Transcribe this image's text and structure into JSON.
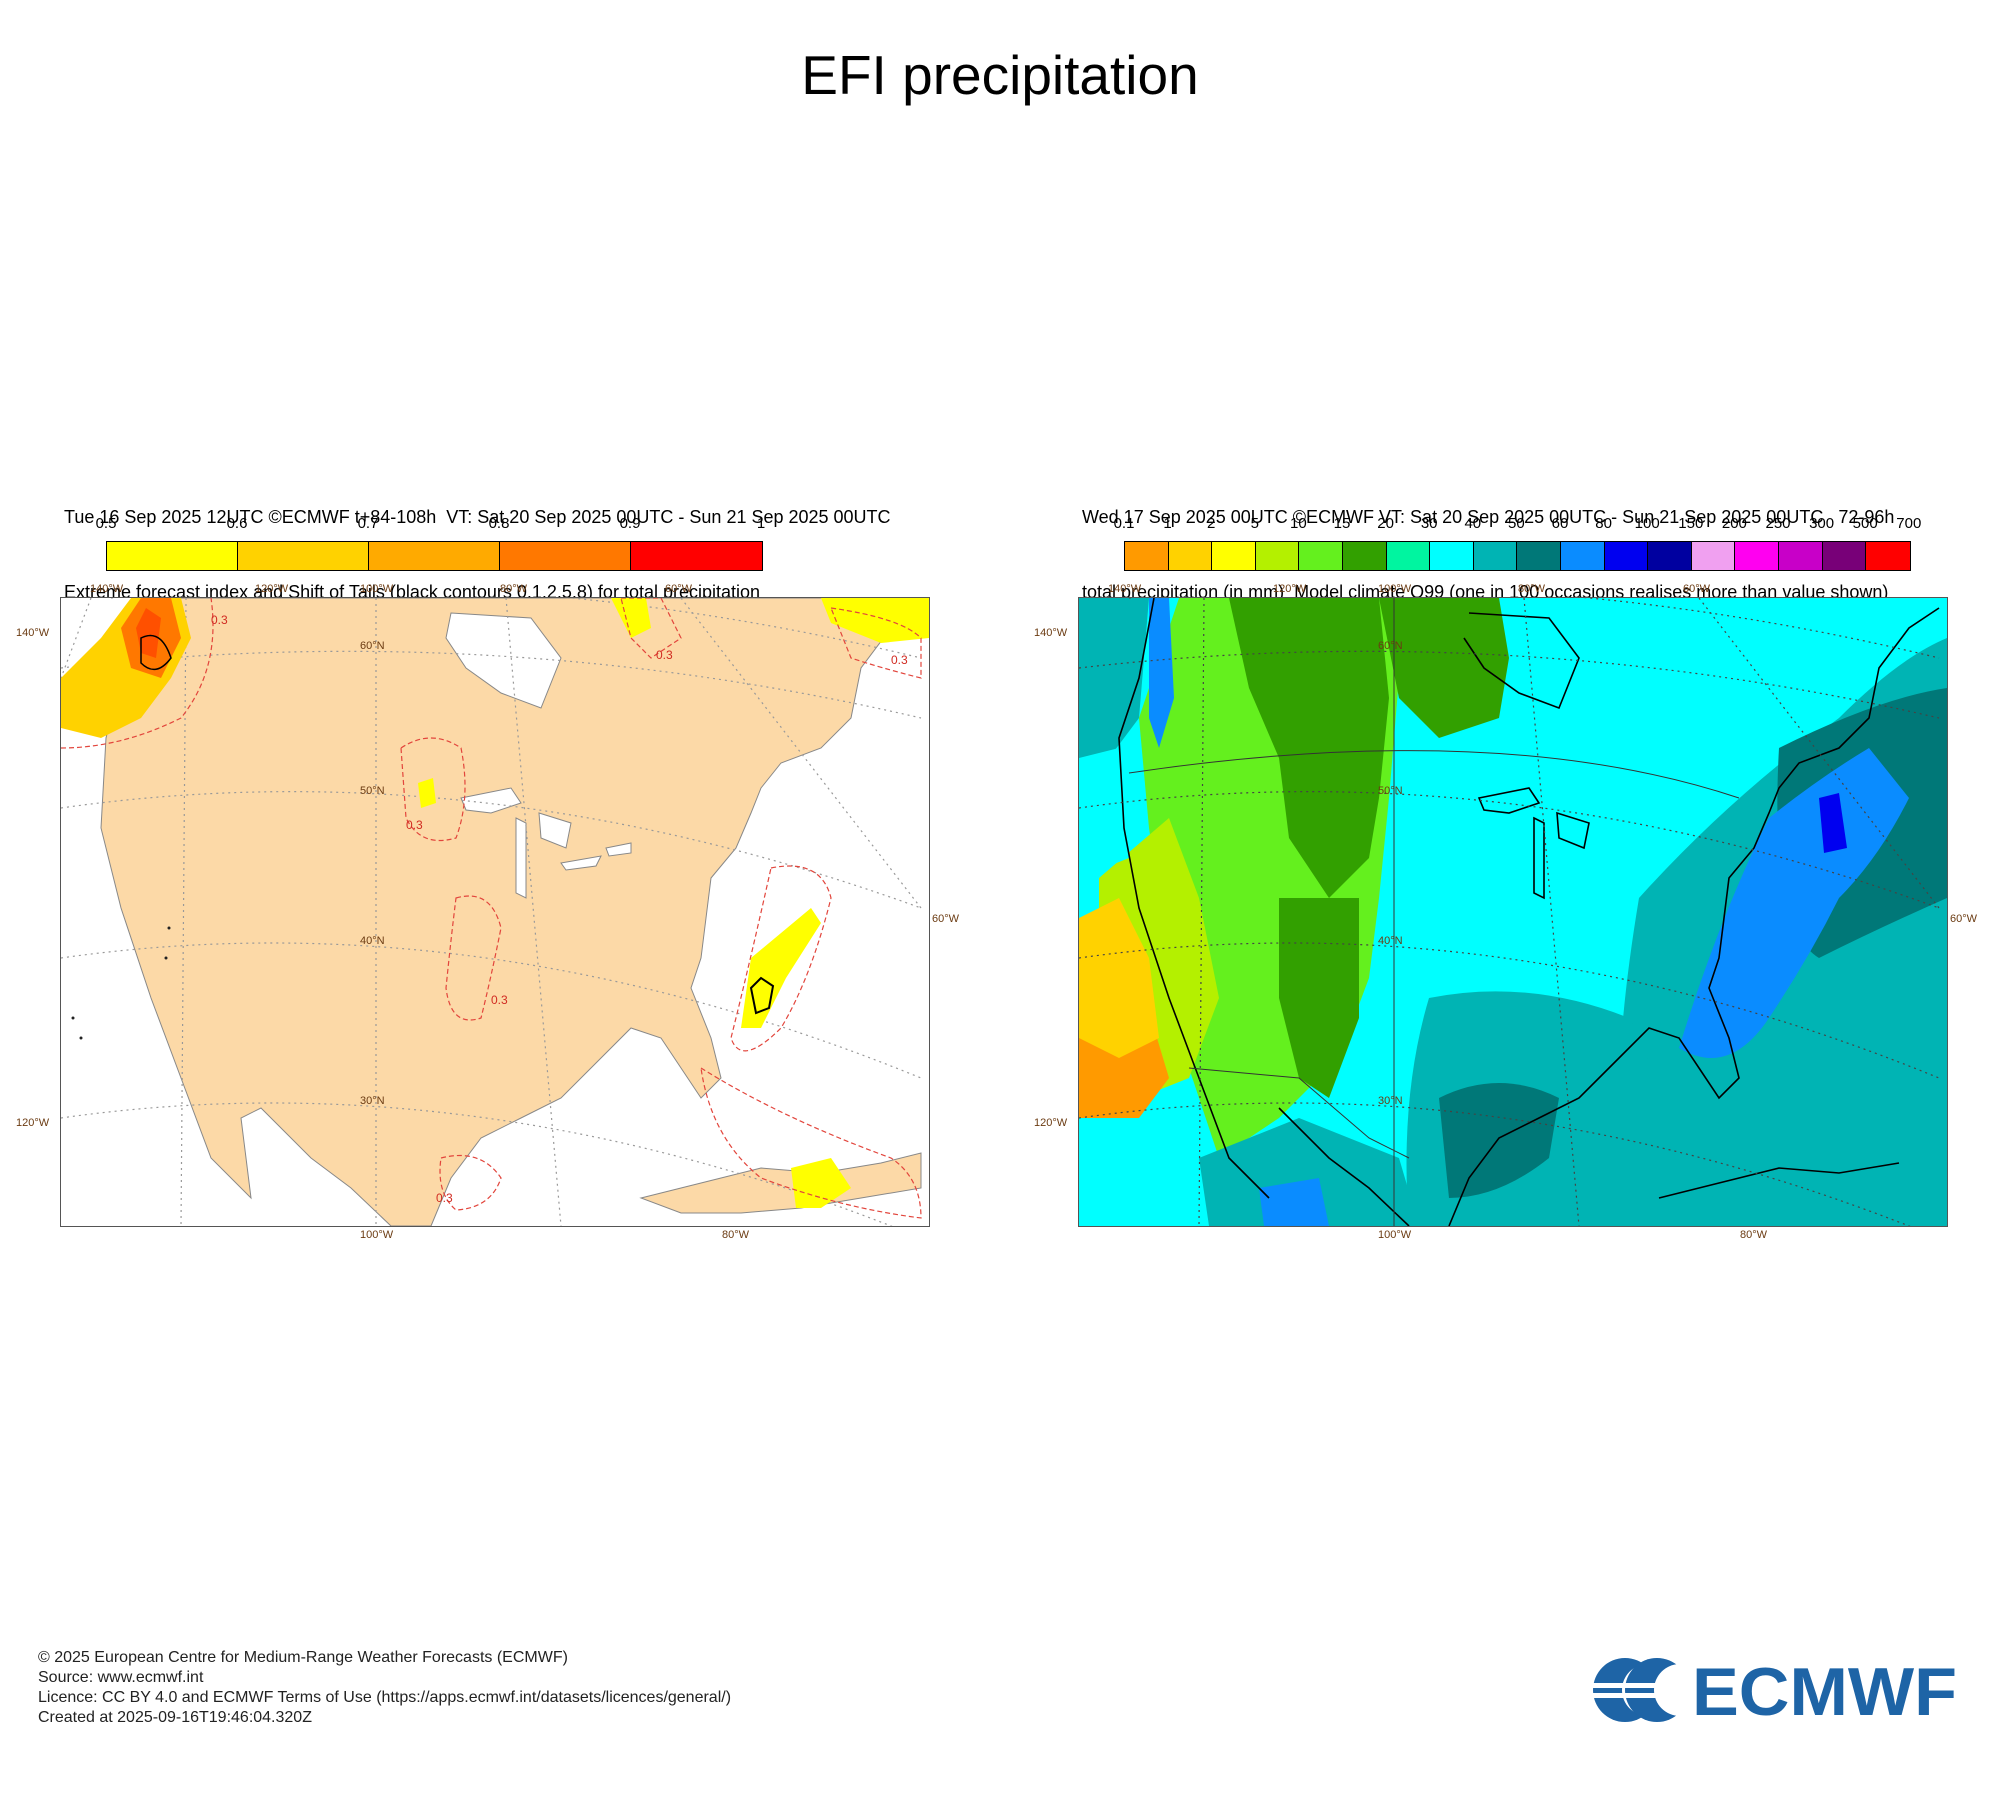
{
  "page": {
    "title": "EFI precipitation"
  },
  "colors": {
    "efi_base": "#fcd9a7",
    "ecmwf_blue": "#1e64a6",
    "contour_red": "#e2453c"
  },
  "panels": [
    {
      "id": "efi",
      "header_line1": "Tue 16 Sep 2025 12UTC ©ECMWF t+84-108h  VT: Sat 20 Sep 2025 00UTC - Sun 21 Sep 2025 00UTC",
      "header_line2": "Extreme forecast index and Shift of Tails (black contours 0,1,2,5,8) for total precipitation",
      "colorbar": {
        "ticks": [
          "0.5",
          "0.6",
          "0.7",
          "0.8",
          "0.9",
          "1"
        ],
        "colors": [
          "#ffff00",
          "#ffd200",
          "#ffaa00",
          "#ff7800",
          "#ff0000"
        ]
      },
      "map": {
        "top_labels": [
          "140°W",
          "120°W",
          "100°W",
          "80°W",
          "60°W"
        ],
        "bottom_labels": [
          "100°W",
          "80°W"
        ],
        "left_labels": [
          "140°W",
          "120°W"
        ],
        "right_labels": [
          "60°W"
        ],
        "lat_labels": [
          "60°N",
          "50°N",
          "40°N",
          "30°N"
        ],
        "contour_labels": [
          "0.3",
          "0.3",
          "0.3",
          "0.3",
          "0.3",
          "0.3"
        ]
      }
    },
    {
      "id": "q99",
      "header_line1": "Wed 17 Sep 2025 00UTC ©ECMWF VT: Sat 20 Sep 2025 00UTC - Sun 21 Sep 2025 00UTC   72-96h",
      "header_line2": "total precipitation (in mm)  Model climate Q99 (one in 100 occasions realises more than value shown)",
      "colorbar": {
        "ticks": [
          "0.1",
          "1",
          "2",
          "5",
          "10",
          "15",
          "20",
          "30",
          "40",
          "50",
          "60",
          "80",
          "100",
          "150",
          "200",
          "250",
          "300",
          "500",
          "700"
        ],
        "colors": [
          "#ff9a00",
          "#ffd200",
          "#ffff00",
          "#b4f000",
          "#64f01e",
          "#32a000",
          "#00f5a0",
          "#00ffff",
          "#00b4b4",
          "#007878",
          "#0a8cff",
          "#0000f0",
          "#0000a0",
          "#f0a0f0",
          "#ff00f0",
          "#c800c8",
          "#780078",
          "#ff0000"
        ]
      },
      "map": {
        "top_labels": [
          "140°W",
          "120°W",
          "100°W",
          "80°W",
          "60°W"
        ],
        "bottom_labels": [
          "100°W",
          "80°W"
        ],
        "left_labels": [
          "140°W",
          "120°W"
        ],
        "right_labels": [
          "60°W"
        ],
        "lat_labels": [
          "60°N",
          "50°N",
          "40°N",
          "30°N"
        ]
      }
    }
  ],
  "footer": {
    "copyright": "© 2025 European Centre for Medium-Range Weather Forecasts (ECMWF)",
    "source": "Source: www.ecmwf.int",
    "licence": "Licence: CC BY 4.0 and ECMWF Terms of Use (https://apps.ecmwf.int/datasets/licences/general/)",
    "created": "Created at 2025-09-16T19:46:04.320Z"
  },
  "logo": {
    "text": "ECMWF"
  }
}
